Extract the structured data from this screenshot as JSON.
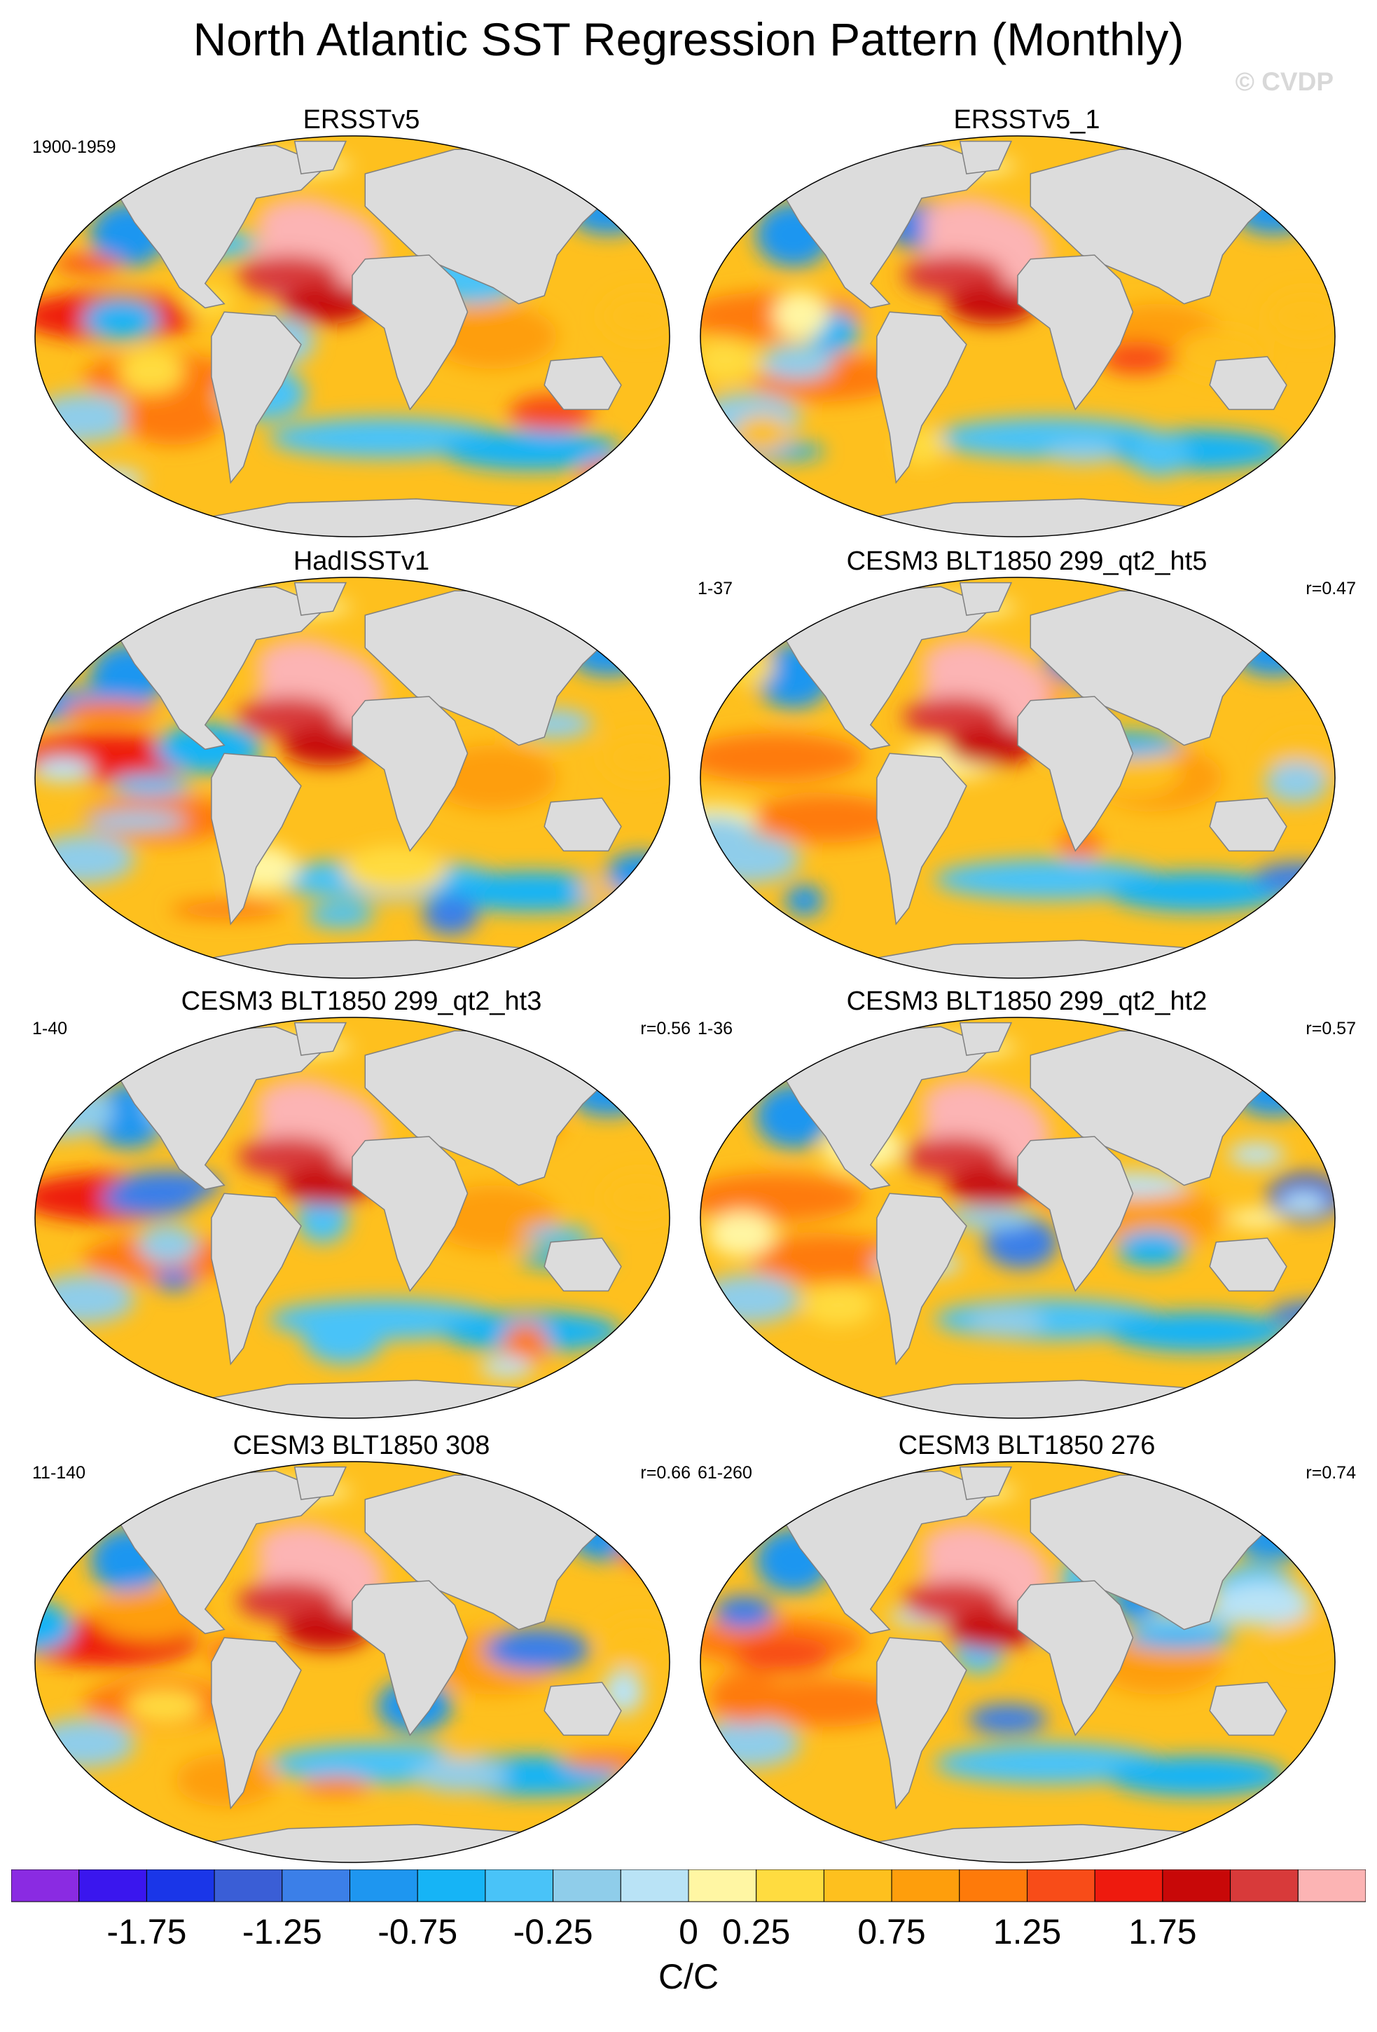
{
  "title": "North Atlantic SST Regression Pattern (Monthly)",
  "watermark": "© CVDP",
  "panels": [
    {
      "title": "ERSSTv5",
      "period": "1900-1959",
      "corr": ""
    },
    {
      "title": "ERSSTv5_1",
      "period": "",
      "corr": ""
    },
    {
      "title": "HadISSTv1",
      "period": "",
      "corr": ""
    },
    {
      "title": "CESM3 BLT1850 299_qt2_ht5",
      "period": "1-37",
      "corr": "r=0.47"
    },
    {
      "title": "CESM3 BLT1850 299_qt2_ht3",
      "period": "1-40",
      "corr": "r=0.56"
    },
    {
      "title": "CESM3 BLT1850 299_qt2_ht2",
      "period": "1-36",
      "corr": "r=0.57"
    },
    {
      "title": "CESM3 BLT1850 308",
      "period": "11-140",
      "corr": "r=0.66"
    },
    {
      "title": "CESM3 BLT1850 276",
      "period": "61-260",
      "corr": "r=0.74"
    }
  ],
  "colorbar": {
    "colors": [
      "#8a2be2",
      "#3a16ee",
      "#1a36e8",
      "#3a5ed6",
      "#3b7fe8",
      "#1e96f0",
      "#16b4f6",
      "#49c3f8",
      "#8fcdea",
      "#b9e3f6",
      "#fff6a3",
      "#ffdc40",
      "#fec01e",
      "#fe9e0c",
      "#fe7a0a",
      "#f84c18",
      "#ee1a0e",
      "#c80808",
      "#d83a3a",
      "#fcb4b4"
    ],
    "labels": [
      "-1.75",
      "-1.25",
      "-0.75",
      "-0.25",
      "0",
      "0.25",
      "0.75",
      "1.25",
      "1.75"
    ],
    "units": "C/C"
  },
  "land_color": "#dcdcdc",
  "ocean_base_color": "#fec01e"
}
